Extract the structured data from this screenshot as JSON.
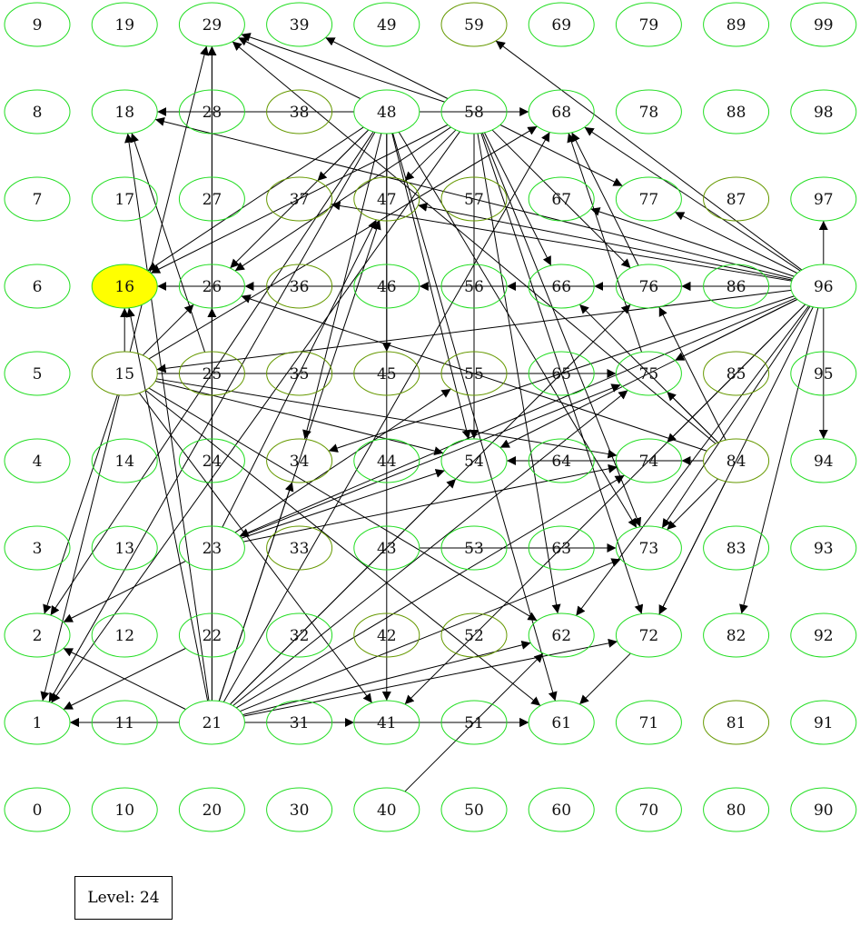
{
  "level_label": "Level: 24",
  "colors": {
    "node_stroke_bright": "#22dd22",
    "node_stroke_olive": "#669900",
    "highlight_fill": "#ffff00",
    "edge": "#000000",
    "background": "#ffffff"
  },
  "highlighted_node": 16,
  "olive_nodes": [
    59,
    87,
    37,
    57,
    55,
    45,
    84,
    34,
    52,
    42,
    36,
    81,
    35,
    33,
    38,
    85,
    15,
    47,
    25
  ],
  "nodes": [
    0,
    1,
    2,
    3,
    4,
    5,
    6,
    7,
    8,
    9,
    10,
    11,
    12,
    13,
    14,
    15,
    16,
    17,
    18,
    19,
    20,
    21,
    22,
    23,
    24,
    25,
    26,
    27,
    28,
    29,
    30,
    31,
    32,
    33,
    34,
    35,
    36,
    37,
    38,
    39,
    40,
    41,
    42,
    43,
    44,
    45,
    46,
    47,
    48,
    49,
    50,
    51,
    52,
    53,
    54,
    55,
    56,
    57,
    58,
    59,
    60,
    61,
    62,
    63,
    64,
    65,
    66,
    67,
    68,
    69,
    70,
    71,
    72,
    73,
    74,
    75,
    76,
    77,
    78,
    79,
    80,
    81,
    82,
    83,
    84,
    85,
    86,
    87,
    88,
    89,
    90,
    91,
    92,
    93,
    94,
    95,
    96,
    97,
    98,
    99
  ],
  "edges": [
    [
      11,
      1
    ],
    [
      21,
      1
    ],
    [
      21,
      2
    ],
    [
      21,
      16
    ],
    [
      21,
      18
    ],
    [
      21,
      26
    ],
    [
      21,
      29
    ],
    [
      21,
      41
    ],
    [
      21,
      61
    ],
    [
      21,
      47
    ],
    [
      21,
      54
    ],
    [
      21,
      62
    ],
    [
      21,
      68
    ],
    [
      21,
      72
    ],
    [
      21,
      73
    ],
    [
      21,
      74
    ],
    [
      21,
      75
    ],
    [
      21,
      76
    ],
    [
      21,
      34
    ],
    [
      31,
      41
    ],
    [
      51,
      61
    ],
    [
      40,
      62
    ],
    [
      15,
      16
    ],
    [
      15,
      2
    ],
    [
      15,
      1
    ],
    [
      15,
      29
    ],
    [
      15,
      26
    ],
    [
      15,
      41
    ],
    [
      15,
      54
    ],
    [
      15,
      61
    ],
    [
      15,
      62
    ],
    [
      15,
      74
    ],
    [
      15,
      75
    ],
    [
      15,
      68
    ],
    [
      23,
      2
    ],
    [
      23,
      54
    ],
    [
      23,
      55
    ],
    [
      23,
      74
    ],
    [
      23,
      75
    ],
    [
      23,
      47
    ],
    [
      23,
      29
    ],
    [
      25,
      18
    ],
    [
      43,
      73
    ],
    [
      22,
      1
    ],
    [
      48,
      18
    ],
    [
      48,
      68
    ],
    [
      48,
      16
    ],
    [
      48,
      37
    ],
    [
      48,
      26
    ],
    [
      48,
      34
    ],
    [
      48,
      41
    ],
    [
      48,
      54
    ],
    [
      48,
      2
    ],
    [
      48,
      1
    ],
    [
      48,
      29
    ],
    [
      48,
      45
    ],
    [
      48,
      61
    ],
    [
      48,
      73
    ],
    [
      58,
      29
    ],
    [
      58,
      39
    ],
    [
      58,
      47
    ],
    [
      58,
      66
    ],
    [
      58,
      76
    ],
    [
      58,
      54
    ],
    [
      58,
      62
    ],
    [
      58,
      72
    ],
    [
      58,
      26
    ],
    [
      58,
      16
    ],
    [
      58,
      77
    ],
    [
      58,
      1
    ],
    [
      58,
      73
    ],
    [
      96,
      16
    ],
    [
      96,
      18
    ],
    [
      96,
      15
    ],
    [
      96,
      26
    ],
    [
      96,
      47
    ],
    [
      96,
      37
    ],
    [
      96,
      46
    ],
    [
      96,
      56
    ],
    [
      96,
      66
    ],
    [
      96,
      67
    ],
    [
      96,
      68
    ],
    [
      96,
      59
    ],
    [
      96,
      73
    ],
    [
      96,
      74
    ],
    [
      96,
      75
    ],
    [
      96,
      76
    ],
    [
      96,
      77
    ],
    [
      96,
      82
    ],
    [
      96,
      94
    ],
    [
      96,
      97
    ],
    [
      96,
      62
    ],
    [
      96,
      54
    ],
    [
      96,
      34
    ],
    [
      96,
      23
    ],
    [
      96,
      41
    ],
    [
      96,
      72
    ],
    [
      86,
      76
    ],
    [
      84,
      76
    ],
    [
      84,
      74
    ],
    [
      84,
      72
    ],
    [
      84,
      54
    ],
    [
      84,
      66
    ],
    [
      84,
      73
    ],
    [
      84,
      75
    ],
    [
      84,
      26
    ],
    [
      84,
      29
    ],
    [
      72,
      61
    ],
    [
      76,
      68
    ],
    [
      75,
      68
    ]
  ]
}
